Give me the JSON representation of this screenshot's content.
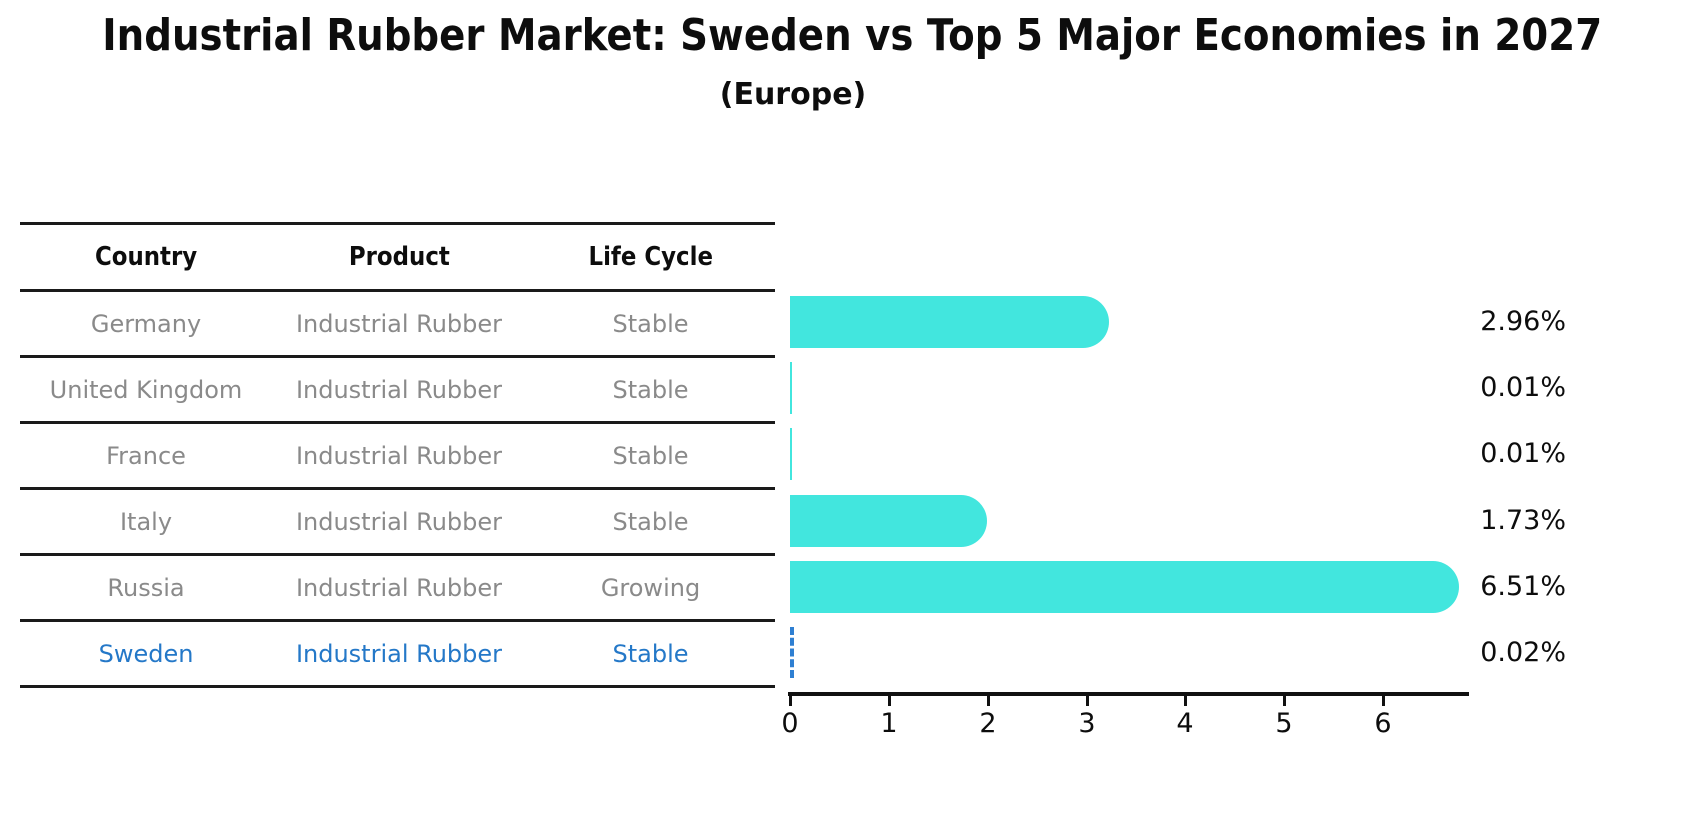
{
  "title": "Industrial Rubber Market: Sweden vs Top 5 Major Economies in 2027",
  "subtitle": "(Europe)",
  "table": {
    "headers": [
      "Country",
      "Product",
      "Life Cycle"
    ],
    "rows": [
      {
        "country": "Germany",
        "product": "Industrial Rubber",
        "life_cycle": "Stable",
        "highlighted": false
      },
      {
        "country": "United Kingdom",
        "product": "Industrial Rubber",
        "life_cycle": "Stable",
        "highlighted": false
      },
      {
        "country": "France",
        "product": "Industrial Rubber",
        "life_cycle": "Stable",
        "highlighted": false
      },
      {
        "country": "Italy",
        "product": "Industrial Rubber",
        "life_cycle": "Stable",
        "highlighted": false
      },
      {
        "country": "Russia",
        "product": "Industrial Rubber",
        "life_cycle": "Growing",
        "highlighted": false
      },
      {
        "country": "Sweden",
        "product": "Industrial Rubber",
        "life_cycle": "Stable",
        "highlighted": true
      }
    ]
  },
  "chart_data": {
    "type": "bar",
    "orientation": "horizontal",
    "title": "Industrial Rubber Market: Sweden vs Top 5 Major Economies in 2027",
    "subtitle": "(Europe)",
    "categories": [
      "Germany",
      "United Kingdom",
      "France",
      "Italy",
      "Russia",
      "Sweden"
    ],
    "values": [
      2.96,
      0.01,
      0.01,
      1.73,
      6.51,
      0.02
    ],
    "value_labels": [
      "2.96%",
      "0.01%",
      "0.01%",
      "1.73%",
      "6.51%",
      "0.02%"
    ],
    "xlabel": "",
    "ylabel": "",
    "xticks": [
      0,
      1,
      2,
      3,
      4,
      5,
      6
    ],
    "xlim": [
      0,
      6.87
    ],
    "grid": false,
    "legend": false,
    "bar_color": "#42E6DE",
    "highlight_index": 5,
    "highlight_style": "dashed-outline",
    "highlight_color": "#2E7FD2"
  },
  "colors": {
    "background": "#FFFFFF",
    "title_text": "#0D0D0D",
    "table_line": "#1A1A1A",
    "table_header_text": "#0D0D0D",
    "table_body_text": "#8A8A8A",
    "highlight_text": "#2478C8",
    "bar": "#42E6DE",
    "highlight_bar": "#2E7FD2",
    "axis": "#111111"
  }
}
